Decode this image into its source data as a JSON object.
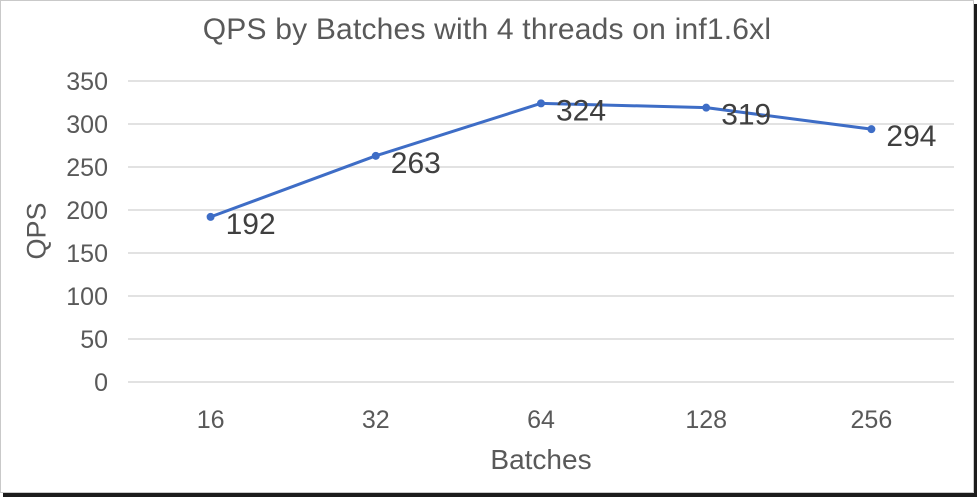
{
  "chart_data": {
    "type": "line",
    "title": "QPS by Batches with 4 threads on inf1.6xl",
    "xlabel": "Batches",
    "ylabel": "QPS",
    "categories": [
      "16",
      "32",
      "64",
      "128",
      "256"
    ],
    "series": [
      {
        "name": "QPS",
        "values": [
          192,
          263,
          324,
          319,
          294
        ]
      }
    ],
    "data_labels": [
      "192",
      "263",
      "324",
      "319",
      "294"
    ],
    "ylim": [
      0,
      350
    ],
    "yticks": [
      0,
      50,
      100,
      150,
      200,
      250,
      300,
      350
    ],
    "grid": true,
    "legend": "none",
    "colors": {
      "line": "#3e6dc6",
      "marker": "#3e6dc6",
      "gridline": "#d9d9d9",
      "axis_text": "#595959",
      "title_text": "#595959",
      "data_label_text": "#3f3f3f"
    }
  }
}
